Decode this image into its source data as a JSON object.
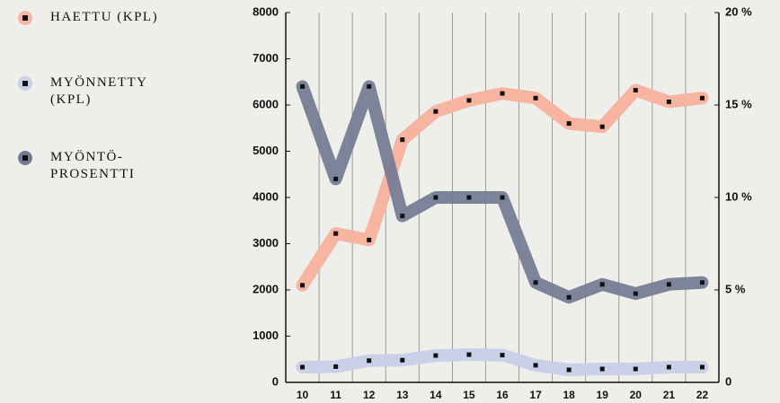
{
  "chart_data": {
    "type": "line",
    "categories": [
      "10",
      "11",
      "12",
      "13",
      "14",
      "15",
      "16",
      "17",
      "18",
      "19",
      "20",
      "21",
      "22"
    ],
    "series": [
      {
        "name": "HAETTU (KPL)",
        "color": "#f6b4a1",
        "values": [
          2100,
          3220,
          3080,
          5250,
          5860,
          6100,
          6250,
          6150,
          5600,
          5530,
          6320,
          6070,
          6150
        ]
      },
      {
        "name": "MYÖNNETTY (KPL)",
        "color": "#c9d0e7",
        "values": [
          330,
          340,
          470,
          480,
          580,
          600,
          590,
          370,
          270,
          290,
          290,
          330,
          330
        ]
      },
      {
        "name": "MYÖNTÖ-PROSENTTI",
        "color": "#737b93",
        "axis": "y2",
        "values": [
          16,
          11,
          16,
          9,
          10,
          10,
          10,
          5.4,
          4.6,
          5.3,
          4.8,
          5.3,
          5.4
        ]
      }
    ],
    "ylim": [
      0,
      8000
    ],
    "yticks": [
      0,
      1000,
      2000,
      3000,
      4000,
      5000,
      6000,
      7000,
      8000
    ],
    "y2lim": [
      0,
      20
    ],
    "y2ticks": [
      0,
      {
        "value": 5,
        "label": "5 %"
      },
      {
        "value": 10,
        "label": "10 %"
      },
      {
        "value": 15,
        "label": "15 %"
      },
      {
        "value": 20,
        "label": "20 %"
      }
    ]
  }
}
